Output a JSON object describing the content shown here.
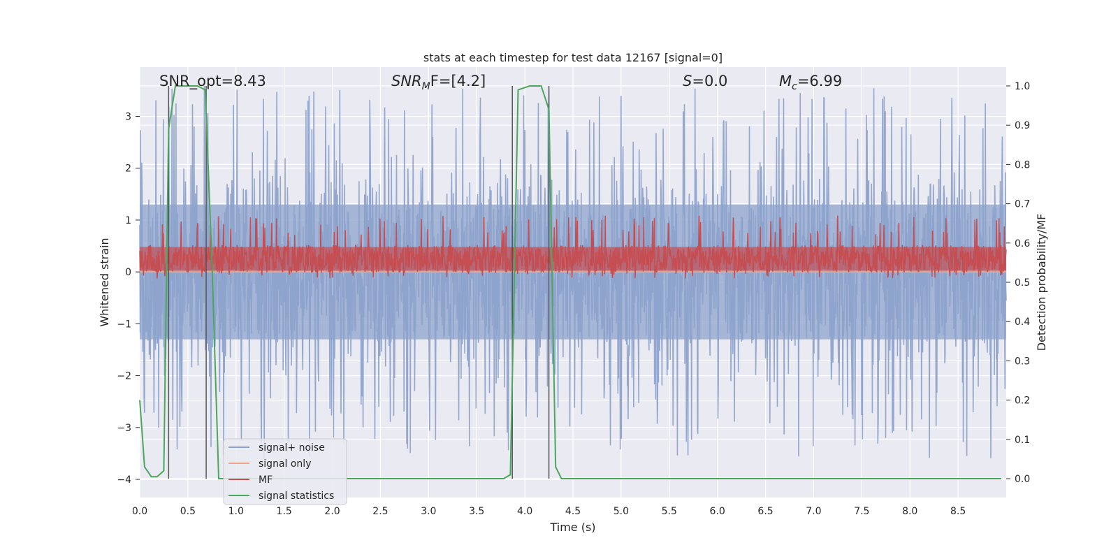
{
  "chart_data": {
    "type": "line",
    "title": "stats at each timestep for test data 12167 [signal=0]",
    "xlabel": "Time (s)",
    "ylabel": "Whitened strain",
    "y2label": "Detection probability/MF",
    "xlim": [
      0.0,
      9.0
    ],
    "ylim": [
      -4.35,
      3.95
    ],
    "y2lim": [
      -0.048,
      1.048
    ],
    "x_ticks": [
      "0.0",
      "0.5",
      "1.0",
      "1.5",
      "2.0",
      "2.5",
      "3.0",
      "3.5",
      "4.0",
      "4.5",
      "5.0",
      "5.5",
      "6.0",
      "6.5",
      "7.0",
      "7.5",
      "8.0",
      "8.5"
    ],
    "y_ticks": [
      "3",
      "2",
      "1",
      "0",
      "−1",
      "−2",
      "−3",
      "−4"
    ],
    "y2_ticks": [
      "1.0",
      "0.9",
      "0.8",
      "0.7",
      "0.6",
      "0.5",
      "0.4",
      "0.3",
      "0.2",
      "0.1",
      "0.0"
    ],
    "grid": true,
    "legend_position": "lower-left",
    "annotations": {
      "snr_opt": "SNR_opt=8.43",
      "snr_mf_label": "SNR",
      "snr_mf_sub": "M",
      "snr_mf_rest": "F=[4.2]",
      "s_label": "S",
      "s_rest": "=0.0",
      "mc_label": "M",
      "mc_sub": "c",
      "mc_rest": "=6.99"
    },
    "series": [
      {
        "name": "signal+ noise",
        "color": "#8ea3cc",
        "description_level": "noise band roughly −2 to +2.2, spikes up to ±3.6"
      },
      {
        "name": "signal only",
        "color": "#e8a58a",
        "values_const": 0.0
      },
      {
        "name": "MF",
        "color": "#c44e52",
        "range": [
          0.05,
          0.75
        ]
      },
      {
        "name": "signal statistics",
        "color": "#4ca65c",
        "x": [
          0.0,
          0.05,
          0.12,
          0.18,
          0.25,
          0.3,
          0.37,
          0.45,
          0.6,
          0.68,
          0.75,
          0.82,
          3.78,
          3.85,
          3.93,
          4.05,
          4.17,
          4.25,
          4.32,
          4.38,
          8.95
        ],
        "y": [
          0.2,
          0.03,
          0.005,
          0.005,
          0.02,
          0.89,
          1.0,
          1.0,
          1.0,
          0.99,
          0.55,
          0.0,
          0.0,
          0.01,
          0.99,
          1.0,
          1.0,
          0.94,
          0.03,
          0.0,
          0.0
        ]
      }
    ],
    "vertical_markers_s": [
      0.3,
      0.69,
      3.87,
      4.25
    ],
    "colors": {
      "background": "#eaeaf2",
      "grid": "#ffffff",
      "marker": "#555555"
    }
  }
}
